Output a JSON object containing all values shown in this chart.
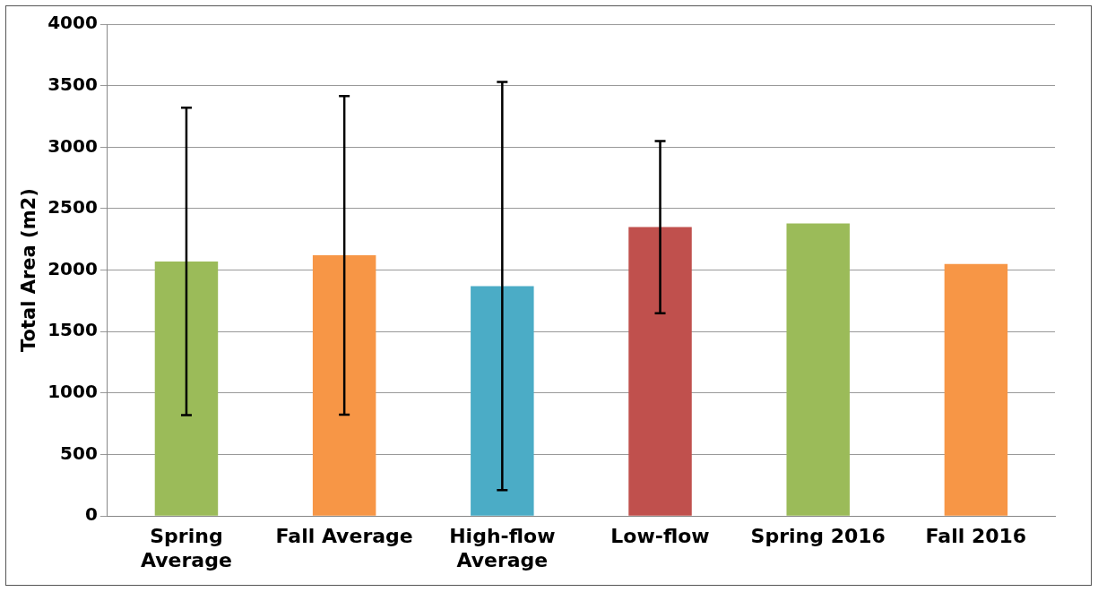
{
  "chart_data": {
    "type": "bar",
    "ylabel": "Total Area (m2)",
    "categories": [
      "Spring Average",
      "Fall Average",
      "High-flow Average",
      "Low-flow",
      "Spring 2016",
      "Fall 2016"
    ],
    "values": [
      2070,
      2120,
      1870,
      2350,
      2380,
      2050
    ],
    "colors": [
      "#9bbb59",
      "#f79646",
      "#4bacc6",
      "#c0504d",
      "#9bbb59",
      "#f79646"
    ],
    "errors": [
      1250,
      1295,
      1660,
      700,
      null,
      null
    ],
    "ylim": [
      0,
      4000
    ],
    "yticks": [
      0,
      500,
      1000,
      1500,
      2000,
      2500,
      3000,
      3500,
      4000
    ],
    "grid": "y"
  }
}
